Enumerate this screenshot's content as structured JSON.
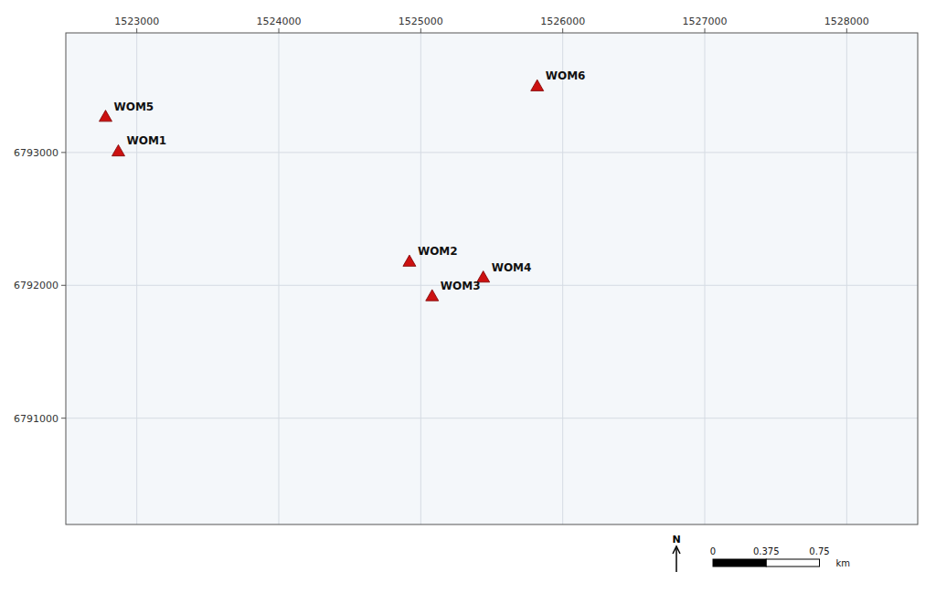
{
  "chart_data": {
    "type": "scatter",
    "x": [
      1522780,
      1522870,
      1525820,
      1524920,
      1525080,
      1525440
    ],
    "values": [
      6793270,
      6793010,
      6793500,
      6792180,
      6791920,
      6792060
    ],
    "labels": [
      "WOM5",
      "WOM1",
      "WOM6",
      "WOM2",
      "WOM3",
      "WOM4"
    ],
    "color": "#cc1111",
    "marker": "triangle",
    "xlim": [
      1522500,
      1528500
    ],
    "ylim": [
      6790200,
      6793900
    ],
    "xticks": [
      1523000,
      1524000,
      1525000,
      1526000,
      1527000,
      1528000
    ],
    "yticks": [
      6791000,
      6792000,
      6793000
    ],
    "grid": true,
    "scale_bar": {
      "ticks": [
        0,
        0.375,
        0.75
      ],
      "unit": "km",
      "units_per_km": 1000
    },
    "north_arrow": "N"
  }
}
